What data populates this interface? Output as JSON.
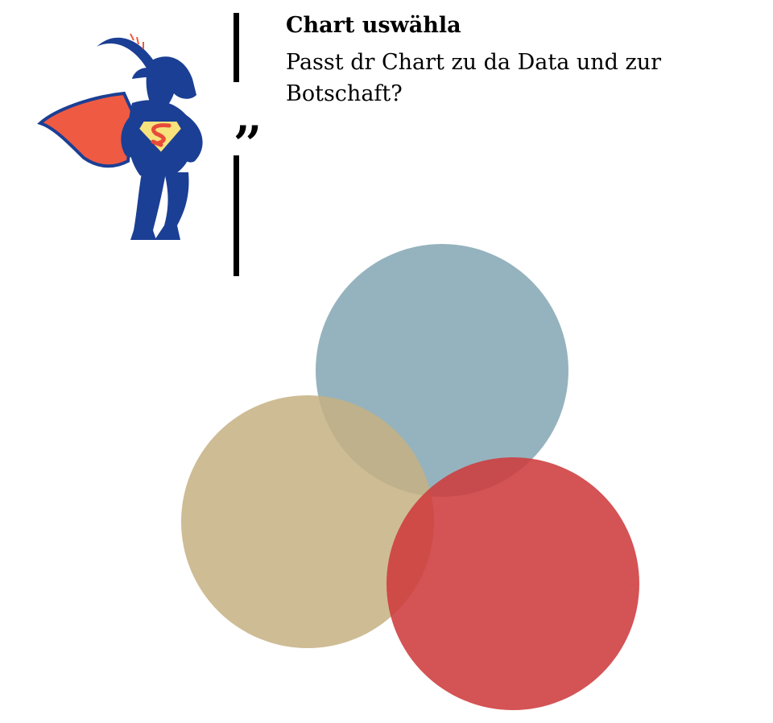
{
  "header": {
    "title": "Chart uswähla",
    "subtitle": "Passt dr Chart zu da Data und zur Botschaft?",
    "quote_glyph": ",,"
  },
  "mascot": {
    "icon": "superhero-goat-icon",
    "colors": {
      "body": "#1b3f94",
      "cape": "#ef5a43",
      "emblem_fill": "#f7e27c",
      "emblem_mark": "#e84a3a"
    }
  },
  "venn": {
    "circles": [
      {
        "id": "top",
        "color": "#8fafbb"
      },
      {
        "id": "left",
        "color": "#c5b083"
      },
      {
        "id": "right",
        "color": "#ce3b3e"
      }
    ]
  }
}
